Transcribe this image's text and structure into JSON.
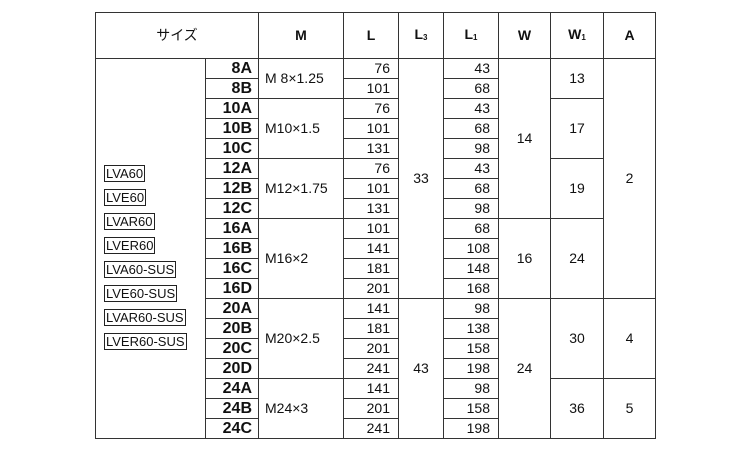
{
  "headers": {
    "size": "サイズ",
    "m": "M",
    "l": "L",
    "l3": {
      "base": "L",
      "sub": "3"
    },
    "l1": {
      "base": "L",
      "sub": "1"
    },
    "w": "W",
    "w1": {
      "base": "W",
      "sub": "1"
    },
    "a": "A"
  },
  "models": [
    "LVA60",
    "LVE60",
    "LVAR60",
    "LVER60",
    "LVA60-SUS",
    "LVE60-SUS",
    "LVAR60-SUS",
    "LVER60-SUS"
  ],
  "rows": [
    {
      "code": "8A",
      "l": "76",
      "l1": "43"
    },
    {
      "code": "8B",
      "l": "101",
      "l1": "68"
    },
    {
      "code": "10A",
      "l": "76",
      "l1": "43"
    },
    {
      "code": "10B",
      "l": "101",
      "l1": "68"
    },
    {
      "code": "10C",
      "l": "131",
      "l1": "98"
    },
    {
      "code": "12A",
      "l": "76",
      "l1": "43"
    },
    {
      "code": "12B",
      "l": "101",
      "l1": "68"
    },
    {
      "code": "12C",
      "l": "131",
      "l1": "98"
    },
    {
      "code": "16A",
      "l": "101",
      "l1": "68"
    },
    {
      "code": "16B",
      "l": "141",
      "l1": "108"
    },
    {
      "code": "16C",
      "l": "181",
      "l1": "148"
    },
    {
      "code": "16D",
      "l": "201",
      "l1": "168"
    },
    {
      "code": "20A",
      "l": "141",
      "l1": "98"
    },
    {
      "code": "20B",
      "l": "181",
      "l1": "138"
    },
    {
      "code": "20C",
      "l": "201",
      "l1": "158"
    },
    {
      "code": "20D",
      "l": "241",
      "l1": "198"
    },
    {
      "code": "24A",
      "l": "141",
      "l1": "98"
    },
    {
      "code": "24B",
      "l": "201",
      "l1": "158"
    },
    {
      "code": "24C",
      "l": "241",
      "l1": "198"
    }
  ],
  "m_groups": [
    {
      "value": "M  8×1.25",
      "span": 2
    },
    {
      "value": "M10×1.5",
      "span": 3
    },
    {
      "value": "M12×1.75",
      "span": 3
    },
    {
      "value": "M16×2",
      "span": 4
    },
    {
      "value": "M20×2.5",
      "span": 4
    },
    {
      "value": "M24×3",
      "span": 3
    }
  ],
  "l3_groups": [
    {
      "value": "33",
      "span": 12
    },
    {
      "value": "43",
      "span": 7
    }
  ],
  "w_groups": [
    {
      "value": "14",
      "span": 8
    },
    {
      "value": "16",
      "span": 4
    },
    {
      "value": "24",
      "span": 7
    }
  ],
  "w1_groups": [
    {
      "value": "13",
      "span": 2
    },
    {
      "value": "17",
      "span": 3
    },
    {
      "value": "19",
      "span": 3
    },
    {
      "value": "24",
      "span": 4
    },
    {
      "value": "30",
      "span": 4
    },
    {
      "value": "36",
      "span": 3
    }
  ],
  "a_groups": [
    {
      "value": "2",
      "span": 12
    },
    {
      "value": "4",
      "span": 4
    },
    {
      "value": "5",
      "span": 3
    }
  ]
}
